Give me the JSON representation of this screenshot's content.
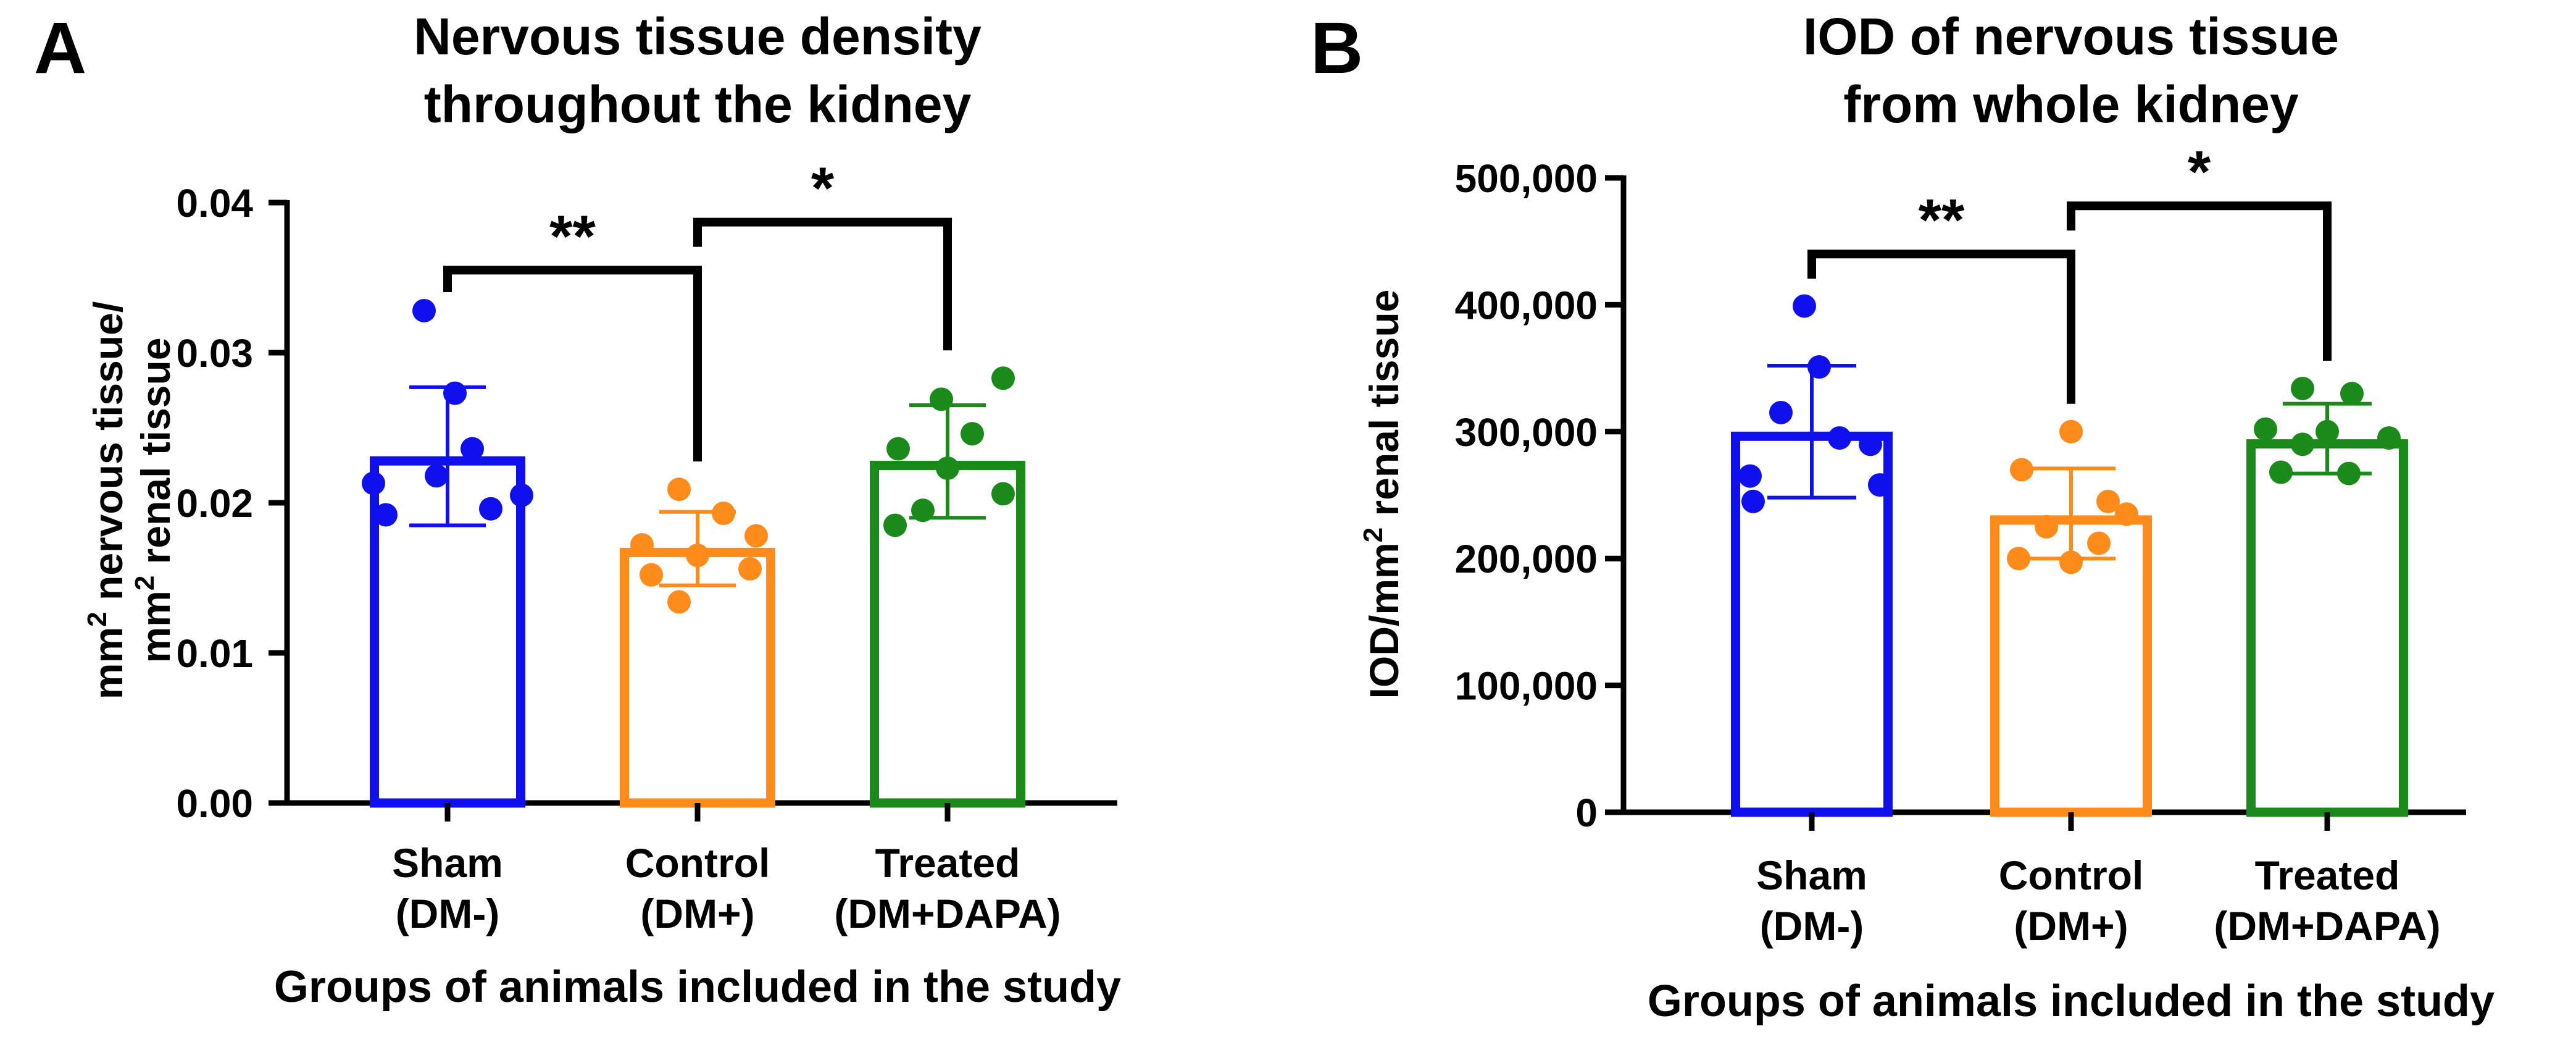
{
  "chart_data": [
    {
      "panel": "A",
      "type": "bar",
      "title_lines": [
        "Nervous tissue density",
        "throughout the kidney"
      ],
      "ylabel_lines": [
        {
          "pre": "mm",
          "sup": "2",
          "post": " nervous tissue/"
        },
        {
          "pre": "mm",
          "sup": "2",
          "post": " renal tissue"
        }
      ],
      "xlabel": "Groups of animals included in the study",
      "ylim": [
        0,
        0.04
      ],
      "yticks": [
        {
          "value": 0,
          "label": "0.00"
        },
        {
          "value": 0.01,
          "label": "0.01"
        },
        {
          "value": 0.02,
          "label": "0.02"
        },
        {
          "value": 0.03,
          "label": "0.03"
        },
        {
          "value": 0.04,
          "label": "0.04"
        }
      ],
      "groups": [
        {
          "line1": "Sham",
          "line2": "(DM-)",
          "color": "#1010ee",
          "mean": 0.0231,
          "sd_low": 0.0185,
          "sd_high": 0.0277,
          "points": [
            0.0328,
            0.0273,
            0.0236,
            0.0218,
            0.0213,
            0.0205,
            0.0196,
            0.0192
          ]
        },
        {
          "line1": "Control",
          "line2": "(DM+)",
          "color": "#ff8c1a",
          "mean": 0.017,
          "sd_low": 0.0145,
          "sd_high": 0.0194,
          "points": [
            0.0209,
            0.0193,
            0.0178,
            0.0172,
            0.0165,
            0.0156,
            0.0152,
            0.0134
          ]
        },
        {
          "line1": "Treated",
          "line2": "(DM+DAPA)",
          "color": "#1a8a1a",
          "mean": 0.0228,
          "sd_low": 0.019,
          "sd_high": 0.0265,
          "points": [
            0.0283,
            0.0269,
            0.0246,
            0.0236,
            0.0223,
            0.0206,
            0.0195,
            0.0185
          ]
        }
      ],
      "significance": [
        {
          "from": 0,
          "to": 1,
          "label": "**",
          "level": 0.0355
        },
        {
          "from": 1,
          "to": 2,
          "label": "*",
          "level": 0.0387
        }
      ]
    },
    {
      "panel": "B",
      "type": "bar",
      "title_lines": [
        "IOD of nervous tissue",
        "from whole kidney"
      ],
      "ylabel_lines": [
        {
          "pre": "IOD/mm",
          "sup": "2",
          "post": " renal tissue"
        }
      ],
      "xlabel": "Groups of animals included in the study",
      "ylim": [
        0,
        500000
      ],
      "yticks": [
        {
          "value": 0,
          "label": "0"
        },
        {
          "value": 100000,
          "label": "100,000"
        },
        {
          "value": 200000,
          "label": "200,000"
        },
        {
          "value": 300000,
          "label": "300,000"
        },
        {
          "value": 400000,
          "label": "400,000"
        },
        {
          "value": 500000,
          "label": "500,000"
        }
      ],
      "groups": [
        {
          "line1": "Sham",
          "line2": "(DM-)",
          "color": "#1010ee",
          "mean": 300000,
          "sd_low": 248000,
          "sd_high": 352000,
          "points": [
            399000,
            351000,
            315000,
            295000,
            290000,
            265000,
            258000,
            245000
          ]
        },
        {
          "line1": "Control",
          "line2": "(DM+)",
          "color": "#ff8c1a",
          "mean": 234000,
          "sd_low": 200000,
          "sd_high": 271000,
          "points": [
            300000,
            270000,
            245000,
            235000,
            225000,
            212000,
            200000,
            197000
          ]
        },
        {
          "line1": "Treated",
          "line2": "(DM+DAPA)",
          "color": "#1a8a1a",
          "mean": 294000,
          "sd_low": 267000,
          "sd_high": 322000,
          "points": [
            334000,
            330000,
            302000,
            300000,
            295000,
            290000,
            268000,
            267000
          ]
        }
      ],
      "significance": [
        {
          "from": 0,
          "to": 1,
          "label": "**",
          "level": 440000
        },
        {
          "from": 1,
          "to": 2,
          "label": "*",
          "level": 478000
        }
      ]
    }
  ]
}
